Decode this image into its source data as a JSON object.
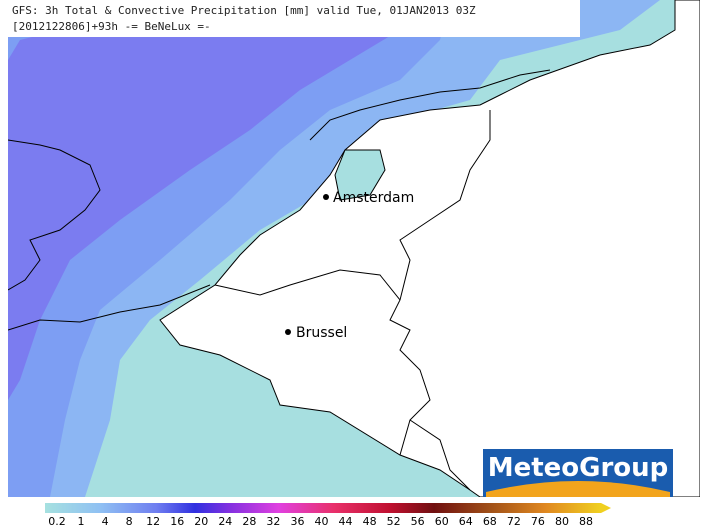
{
  "header": {
    "title": "GFS: 3h Total & Convective Precipitation [mm] valid Tue, 01JAN2013 03Z",
    "subtitle": "[2012122806]+93h -= BeNeLux =-"
  },
  "map": {
    "cities": [
      {
        "label": "Amsterdam"
      },
      {
        "label": "Brussel"
      }
    ]
  },
  "logo": {
    "text": "MeteoGroup"
  },
  "legend": {
    "labels": [
      0.2,
      1,
      4,
      8,
      12,
      16,
      20,
      24,
      28,
      32,
      36,
      40,
      44,
      48,
      52,
      56,
      60,
      64,
      68,
      72,
      76,
      80,
      88
    ]
  }
}
